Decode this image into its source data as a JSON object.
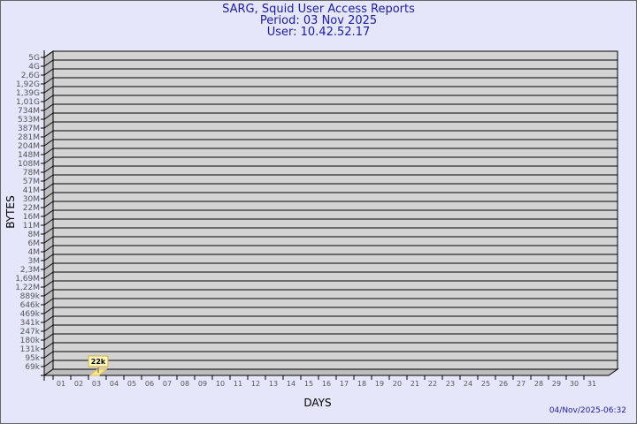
{
  "header": {
    "title": "SARG, Squid User Access Reports",
    "period": "Period: 03 Nov 2025",
    "user": "User: 10.42.52.17"
  },
  "footer": {
    "timestamp": "04/Nov/2025-06:32"
  },
  "colors": {
    "background": "#e6e6fa",
    "plot": "#d3d3d3",
    "bar": "#ffe68c",
    "text": "#1c1c9c"
  },
  "chart_data": {
    "type": "bar",
    "xlabel": "DAYS",
    "ylabel": "BYTES",
    "y_scale": "log",
    "y_ticks": [
      "5G",
      "4G",
      "2,6G",
      "1,92G",
      "1,39G",
      "1,01G",
      "734M",
      "533M",
      "387M",
      "281M",
      "204M",
      "148M",
      "108M",
      "78M",
      "57M",
      "41M",
      "30M",
      "22M",
      "16M",
      "11M",
      "8M",
      "6M",
      "4M",
      "3M",
      "2,3M",
      "1,69M",
      "1,22M",
      "889k",
      "646k",
      "469k",
      "341k",
      "247k",
      "180k",
      "131k",
      "95k",
      "69k"
    ],
    "categories": [
      "01",
      "02",
      "03",
      "04",
      "05",
      "06",
      "07",
      "08",
      "09",
      "10",
      "11",
      "12",
      "13",
      "14",
      "15",
      "16",
      "17",
      "18",
      "19",
      "20",
      "21",
      "22",
      "23",
      "24",
      "25",
      "26",
      "27",
      "28",
      "29",
      "30",
      "31"
    ],
    "values": [
      null,
      null,
      22000,
      null,
      null,
      null,
      null,
      null,
      null,
      null,
      null,
      null,
      null,
      null,
      null,
      null,
      null,
      null,
      null,
      null,
      null,
      null,
      null,
      null,
      null,
      null,
      null,
      null,
      null,
      null,
      null
    ],
    "data_labels": {
      "03": "22k"
    },
    "grid": true
  }
}
